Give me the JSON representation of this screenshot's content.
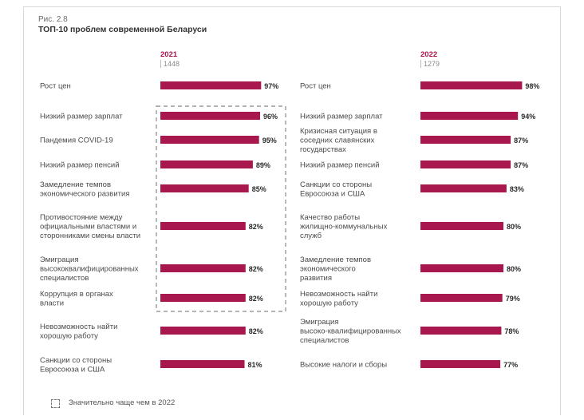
{
  "figure": {
    "label": "Рис. 2.8",
    "title": "ТОП-10 проблем современной Беларуси",
    "legend_note": "Значительно чаще чем в 2022"
  },
  "colors": {
    "bar": "#a8174e",
    "highlight_border": "#888888"
  },
  "chart_data": [
    {
      "type": "bar",
      "orientation": "horizontal",
      "year": "2021",
      "sample": "1448",
      "categories": [
        "Рост цен",
        "Низкий размер зарплат",
        "Пандемия COVID-19",
        "Низкий размер пенсий",
        "Замедление темпов экономического развития",
        "Противостояние между официальными властями и сторонниками смены власти",
        "Эмиграция высококвалифицированных специалистов",
        "Коррупция в органах власти",
        "Невозможность найти хорошую работу",
        "Санкции со стороны Евросоюза и США"
      ],
      "values": [
        97,
        96,
        95,
        89,
        85,
        82,
        82,
        82,
        82,
        81
      ],
      "value_labels": [
        "97%",
        "96%",
        "95%",
        "89%",
        "85%",
        "82%",
        "82%",
        "82%",
        "82%",
        "81%"
      ],
      "highlighted": [
        1,
        2,
        3,
        4,
        5,
        6,
        7
      ]
    },
    {
      "type": "bar",
      "orientation": "horizontal",
      "year": "2022",
      "sample": "1279",
      "categories": [
        "Рост цен",
        "Низкий размер зарплат",
        "Кризисная ситуация в соседних славянских государствах",
        "Низкий размер пенсий",
        "Санкции со стороны Евросоюза и США",
        "Качество работы жилищно-коммунальных служб",
        "Замедление темпов экономического развития",
        "Невозможность найти хорошую работу",
        "Эмиграция высоко-квалифицированных специалистов",
        "Высокие налоги и сборы"
      ],
      "values": [
        98,
        94,
        87,
        87,
        83,
        80,
        80,
        79,
        78,
        77
      ],
      "value_labels": [
        "98%",
        "94%",
        "87%",
        "87%",
        "83%",
        "80%",
        "80%",
        "79%",
        "78%",
        "77%"
      ]
    }
  ]
}
